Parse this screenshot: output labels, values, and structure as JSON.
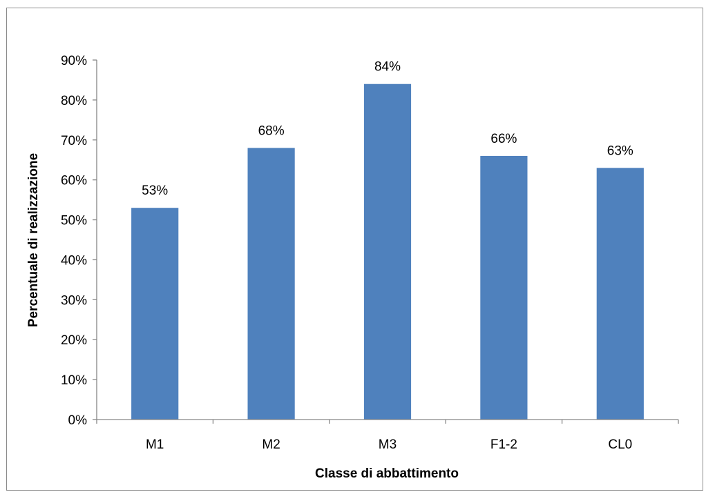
{
  "chart_data": {
    "type": "bar",
    "categories": [
      "M1",
      "M2",
      "M3",
      "F1-2",
      "CL0"
    ],
    "values": [
      53,
      68,
      84,
      66,
      63
    ],
    "value_labels": [
      "53%",
      "68%",
      "84%",
      "66%",
      "63%"
    ],
    "xlabel": "Classe di abbattimento",
    "ylabel": "Percentuale di realizzazione",
    "ylim": [
      0,
      90
    ],
    "y_ticks": [
      0,
      10,
      20,
      30,
      40,
      50,
      60,
      70,
      80,
      90
    ],
    "y_tick_labels": [
      "0%",
      "10%",
      "20%",
      "30%",
      "40%",
      "50%",
      "60%",
      "70%",
      "80%",
      "90%"
    ],
    "grid": false,
    "legend": "none",
    "bar_color": "#4f81bd",
    "axis_color": "#868686"
  }
}
